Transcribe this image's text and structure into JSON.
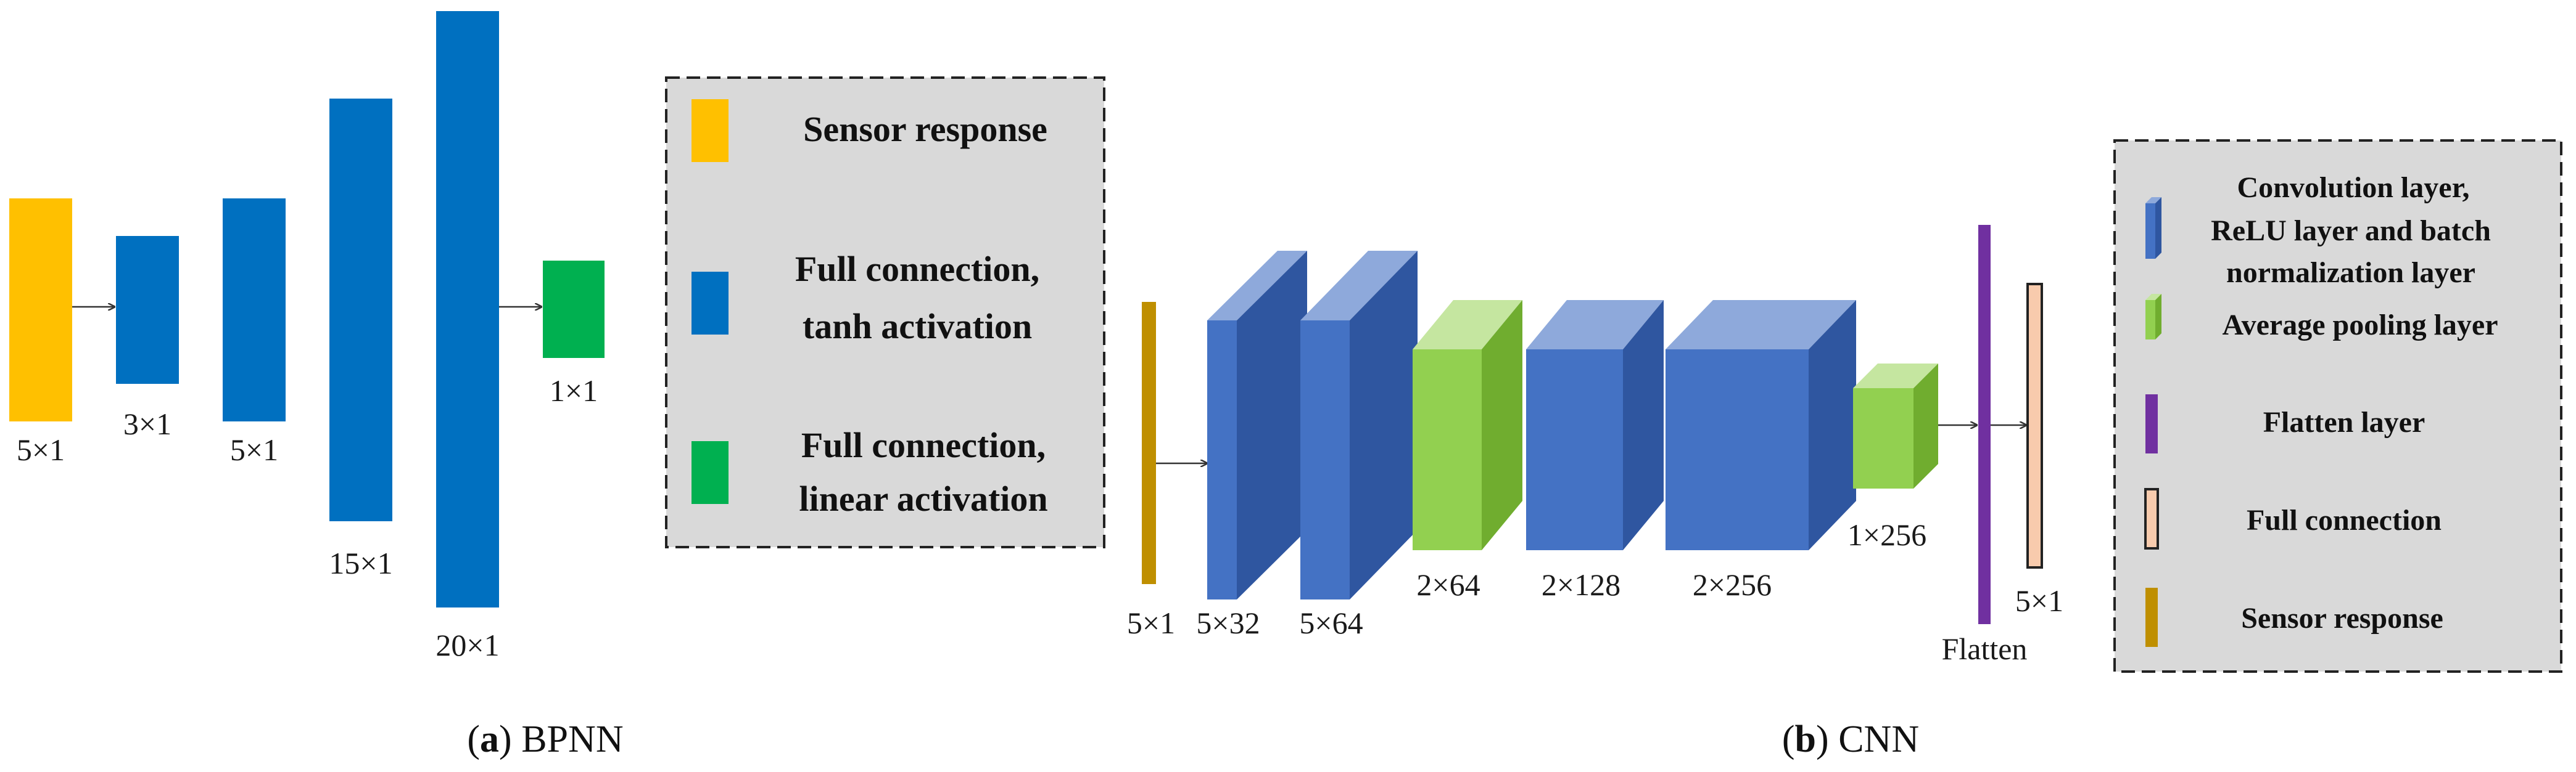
{
  "colors": {
    "sensor_response": "#FFC000",
    "full_connection_tanh": "#0070C0",
    "full_connection_linear": "#00B050",
    "conv_front": "#4472C4",
    "conv_top": "#8EA9DB",
    "conv_side": "#2F56A0",
    "pool_front": "#92D050",
    "pool_top": "#C5E6A0",
    "pool_side": "#70AD2F",
    "flatten": "#7030A0",
    "full_connection_cnn": "#F8CBAD",
    "sensor_cnn": "#BF8F00",
    "legend_bg": "#D9D9D9"
  },
  "bpnn": {
    "layers": [
      {
        "label": "5×1"
      },
      {
        "label": "3×1"
      },
      {
        "label": "5×1"
      },
      {
        "label": "15×1"
      },
      {
        "label": "20×1"
      },
      {
        "label": "1×1"
      }
    ],
    "legend": {
      "sensor_response": "Sensor response",
      "tanh_line1": "Full connection,",
      "tanh_line2": "tanh activation",
      "linear_line1": "Full connection,",
      "linear_line2": "linear activation"
    },
    "caption_letter": "(a)",
    "caption_text": "BPNN"
  },
  "cnn": {
    "layers": [
      {
        "label": "5×1"
      },
      {
        "label": "5×32"
      },
      {
        "label": "5×64"
      },
      {
        "label": "2×64"
      },
      {
        "label": "2×128"
      },
      {
        "label": "2×256"
      },
      {
        "label": "1×256"
      },
      {
        "label": "Flatten"
      },
      {
        "label": "5×1"
      }
    ],
    "legend": {
      "conv_line1": "Convolution layer,",
      "conv_line2": "ReLU layer and batch",
      "conv_line3": "normalization layer",
      "pool": "Average pooling layer",
      "flatten": "Flatten layer",
      "full_connection": "Full connection",
      "sensor_response": "Sensor response"
    },
    "caption_letter": "(b)",
    "caption_text": "CNN"
  }
}
